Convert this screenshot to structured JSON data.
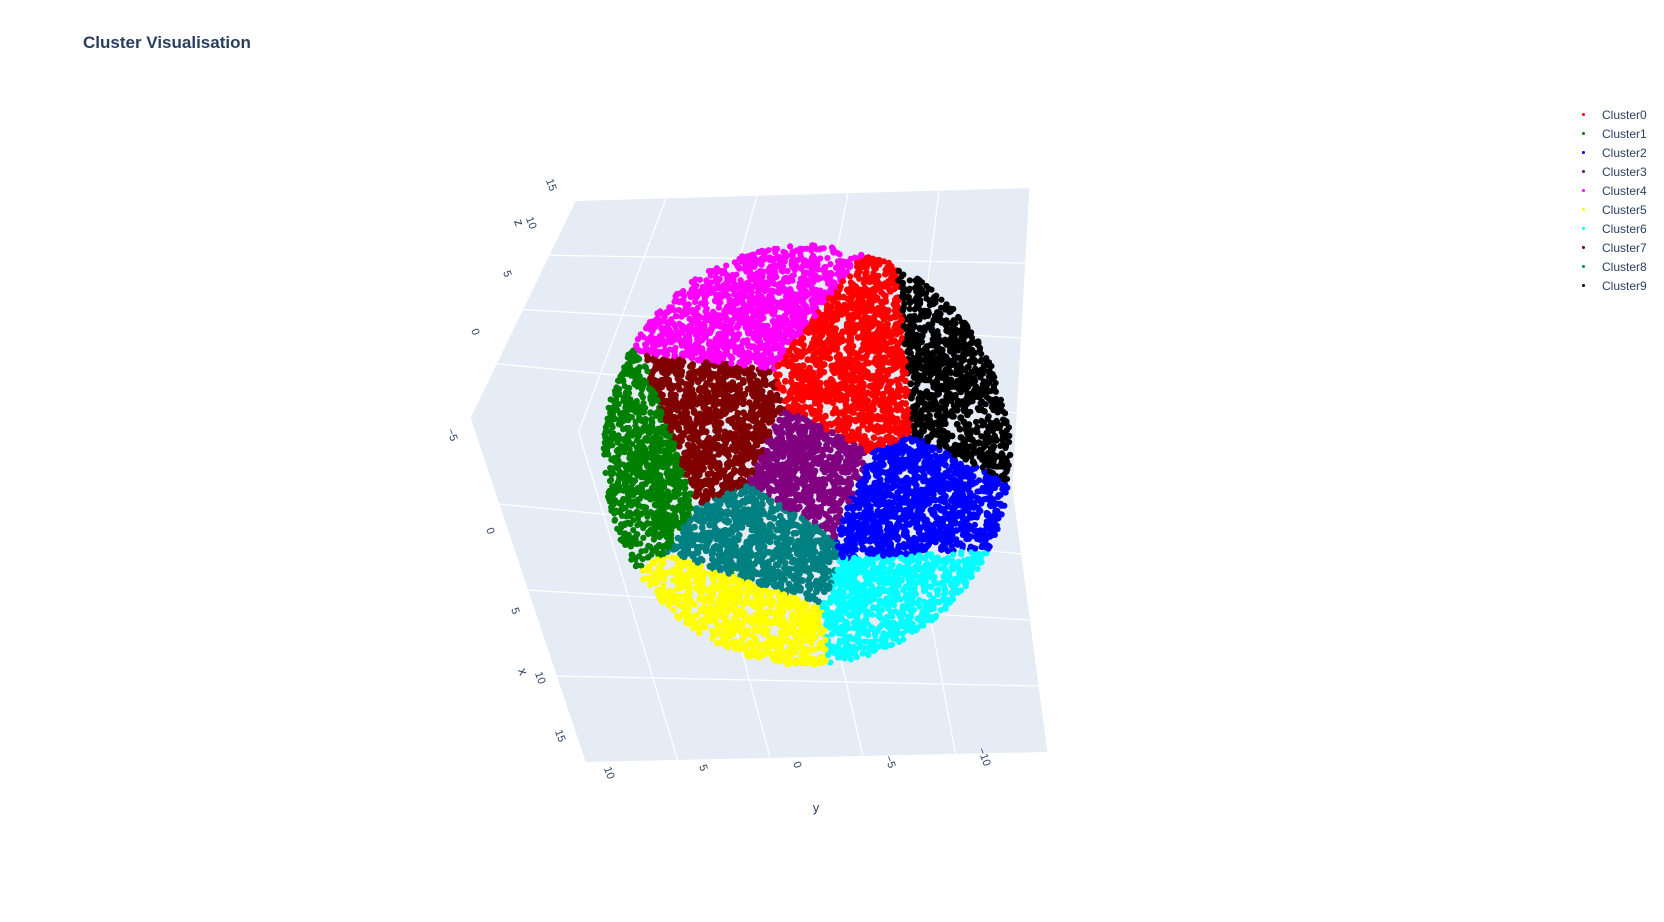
{
  "chart_data": {
    "type": "scatter",
    "title": "Cluster Visualisation",
    "axes": {
      "x": {
        "label": "x",
        "ticks": [
          "0",
          "5",
          "10",
          "15"
        ]
      },
      "y": {
        "label": "y",
        "ticks": [
          "10",
          "5",
          "0",
          "−5",
          "−10"
        ]
      },
      "z": {
        "label": "z",
        "ticks": [
          "15",
          "10",
          "5",
          "0",
          "−5"
        ]
      }
    },
    "legend_position": "top-right",
    "series": [
      {
        "name": "Cluster0",
        "color": "#ff0000",
        "center": [
          0,
          -3,
          3
        ]
      },
      {
        "name": "Cluster1",
        "color": "#008000",
        "center": [
          3,
          8,
          -1
        ]
      },
      {
        "name": "Cluster2",
        "color": "#0000ff",
        "center": [
          4,
          -3,
          -4
        ]
      },
      {
        "name": "Cluster3",
        "color": "#800080",
        "center": [
          0,
          0,
          0
        ]
      },
      {
        "name": "Cluster4",
        "color": "#ff00ff",
        "center": [
          -6,
          3,
          6
        ]
      },
      {
        "name": "Cluster5",
        "color": "#ffff00",
        "center": [
          8,
          3,
          -6
        ]
      },
      {
        "name": "Cluster6",
        "color": "#00ffff",
        "center": [
          8,
          -6,
          -6
        ]
      },
      {
        "name": "Cluster7",
        "color": "#800000",
        "center": [
          -1,
          4,
          1
        ]
      },
      {
        "name": "Cluster8",
        "color": "#008080",
        "center": [
          4,
          2,
          -3
        ]
      },
      {
        "name": "Cluster9",
        "color": "#000000",
        "center": [
          -5,
          -8,
          2
        ]
      }
    ]
  }
}
